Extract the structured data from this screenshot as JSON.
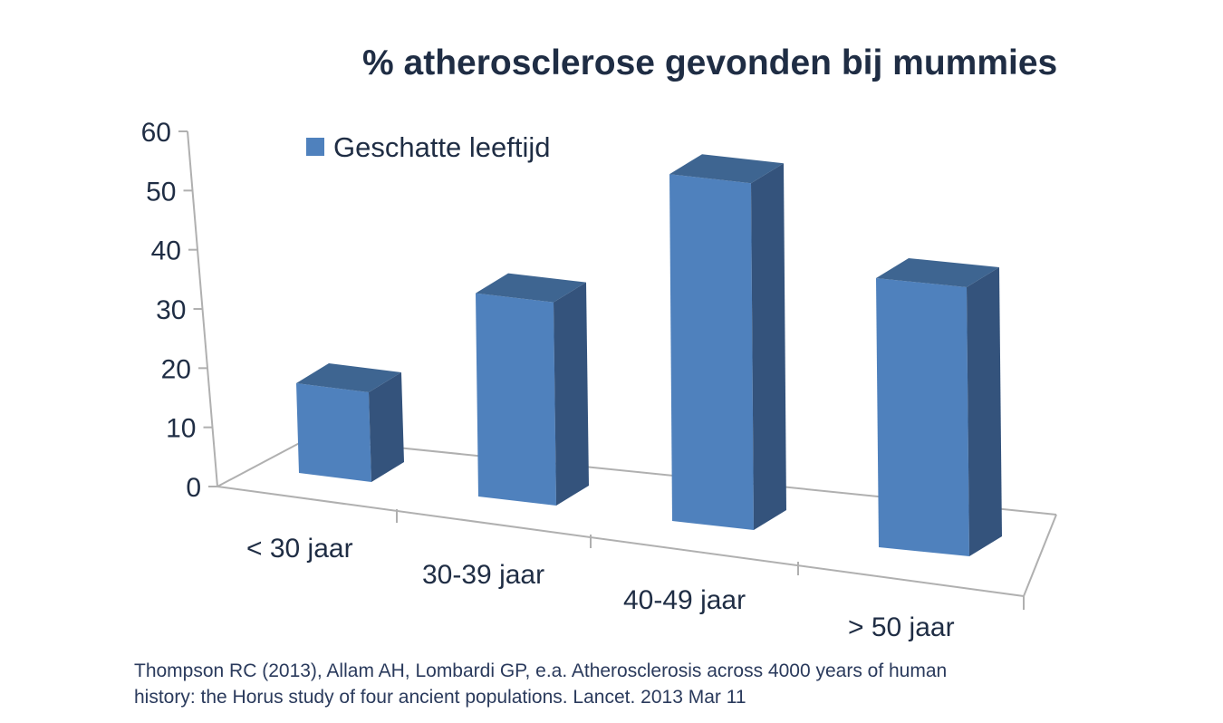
{
  "chart_data": {
    "type": "bar",
    "title": "% atherosclerose gevonden bij mummies",
    "categories": [
      "< 30 jaar",
      "30-39 jaar",
      "40-49 jaar",
      "> 50 jaar"
    ],
    "series": [
      {
        "name": "Geschatte leeftijd",
        "values": [
          15,
          34,
          58,
          45
        ]
      }
    ],
    "yticks": [
      "0",
      "10",
      "20",
      "30",
      "40",
      "50",
      "60"
    ],
    "ylim": [
      0,
      60
    ],
    "xlabel": "",
    "ylabel": "",
    "style": "3d-column",
    "grid": false,
    "legend": "top-left",
    "colors": {
      "front": "#4f81bd",
      "side": "#34537c",
      "top": "#3e6591",
      "axis": "#b0b0b0",
      "text": "#1f2d44"
    }
  },
  "source": {
    "line1": "Thompson RC (2013), Allam AH, Lombardi GP, e.a. Atherosclerosis across 4000 years of human",
    "line2": "history: the Horus study of four ancient populations. Lancet. 2013 Mar 11"
  }
}
